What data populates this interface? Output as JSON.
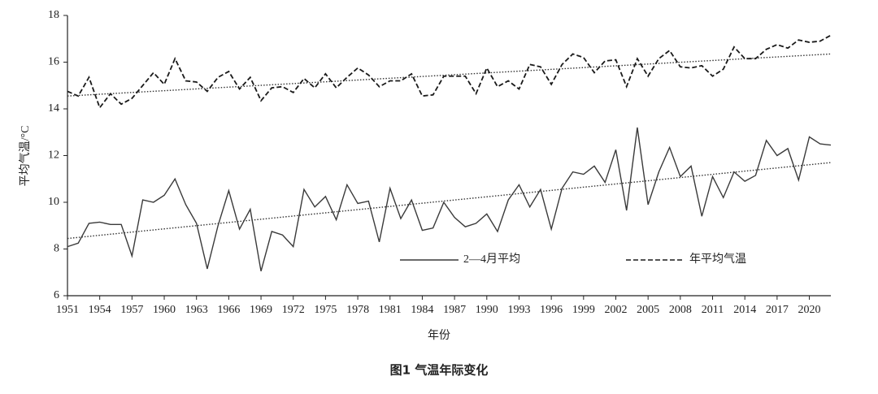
{
  "chart_data": {
    "type": "line",
    "title": "图1 气温年际变化",
    "x_label": "年份",
    "y_label": "平均气温/°C",
    "x": [
      1951,
      1952,
      1953,
      1954,
      1955,
      1956,
      1957,
      1958,
      1959,
      1960,
      1961,
      1962,
      1963,
      1964,
      1965,
      1966,
      1967,
      1968,
      1969,
      1970,
      1971,
      1972,
      1973,
      1974,
      1975,
      1976,
      1977,
      1978,
      1979,
      1980,
      1981,
      1982,
      1983,
      1984,
      1985,
      1986,
      1987,
      1988,
      1989,
      1990,
      1991,
      1992,
      1993,
      1994,
      1995,
      1996,
      1997,
      1998,
      1999,
      2000,
      2001,
      2002,
      2003,
      2004,
      2005,
      2006,
      2007,
      2008,
      2009,
      2010,
      2011,
      2012,
      2013,
      2014,
      2015,
      2016,
      2017,
      2018,
      2019,
      2020,
      2021,
      2022
    ],
    "series": [
      {
        "name": "2—4月平均",
        "color": "#3a3a3a",
        "line_style": "solid",
        "values": [
          8.1,
          8.25,
          9.1,
          9.15,
          9.05,
          9.05,
          7.7,
          10.1,
          10.0,
          10.3,
          11.0,
          9.9,
          9.1,
          7.15,
          9.0,
          10.5,
          8.85,
          9.7,
          7.05,
          8.75,
          8.6,
          8.1,
          10.55,
          9.8,
          10.25,
          9.25,
          10.75,
          9.95,
          10.05,
          8.3,
          10.6,
          9.3,
          10.1,
          8.8,
          8.9,
          10.0,
          9.35,
          8.95,
          9.1,
          9.5,
          8.75,
          10.1,
          10.75,
          9.8,
          10.55,
          8.85,
          10.6,
          11.3,
          11.2,
          11.55,
          10.85,
          12.25,
          9.65,
          13.2,
          9.9,
          11.3,
          12.35,
          11.1,
          11.55,
          9.4,
          11.1,
          10.2,
          11.3,
          10.9,
          11.15,
          12.65,
          12.0,
          12.3,
          10.95,
          12.8,
          12.5,
          12.45
        ],
        "trend": {
          "x": [
            1951,
            2022
          ],
          "values": [
            8.45,
            11.7
          ]
        }
      },
      {
        "name": "年平均气温",
        "color": "#1a1a1a",
        "line_style": "dashed",
        "values": [
          14.75,
          14.55,
          15.35,
          14.05,
          14.65,
          14.2,
          14.45,
          15.0,
          15.55,
          15.05,
          16.15,
          15.2,
          15.15,
          14.75,
          15.35,
          15.6,
          14.85,
          15.35,
          14.35,
          14.9,
          14.95,
          14.7,
          15.3,
          14.9,
          15.5,
          14.9,
          15.35,
          15.75,
          15.45,
          14.95,
          15.2,
          15.2,
          15.5,
          14.55,
          14.6,
          15.4,
          15.4,
          15.4,
          14.65,
          15.75,
          14.95,
          15.2,
          14.85,
          15.9,
          15.8,
          15.05,
          15.9,
          16.35,
          16.2,
          15.55,
          16.05,
          16.1,
          14.95,
          16.15,
          15.4,
          16.15,
          16.5,
          15.8,
          15.75,
          15.85,
          15.4,
          15.7,
          16.65,
          16.15,
          16.15,
          16.55,
          16.75,
          16.6,
          16.95,
          16.85,
          16.9,
          17.15
        ],
        "trend": {
          "x": [
            1951,
            2022
          ],
          "values": [
            14.55,
            16.35
          ]
        }
      }
    ],
    "trend_style": "dotted",
    "xlim": [
      1951,
      2022
    ],
    "xticks": [
      1951,
      1954,
      1957,
      1960,
      1963,
      1966,
      1969,
      1972,
      1975,
      1978,
      1981,
      1984,
      1987,
      1990,
      1993,
      1996,
      1999,
      2002,
      2005,
      2008,
      2011,
      2014,
      2017,
      2020
    ],
    "ylim": [
      6,
      18
    ],
    "yticks": [
      6,
      8,
      10,
      12,
      14,
      16,
      18
    ],
    "legend_position": "lower center"
  }
}
